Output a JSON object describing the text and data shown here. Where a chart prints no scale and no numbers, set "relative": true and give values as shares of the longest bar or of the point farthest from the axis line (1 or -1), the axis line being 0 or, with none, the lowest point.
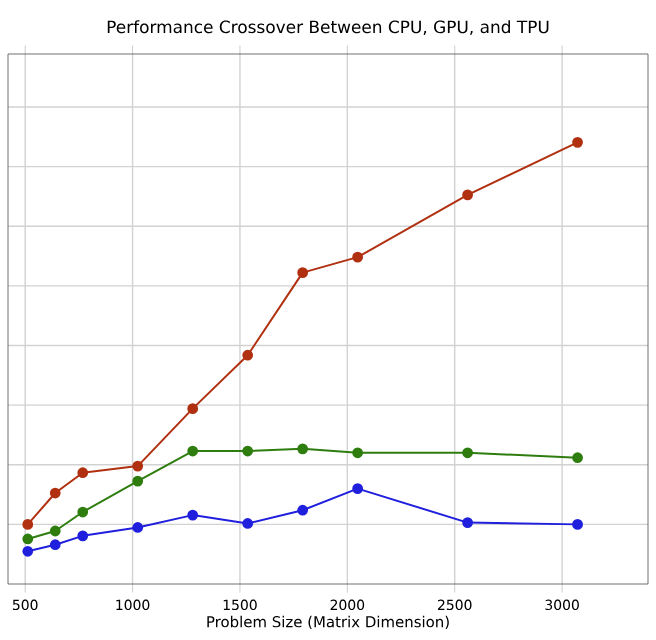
{
  "chart_data": {
    "type": "line",
    "title": "Performance Crossover Between CPU, GPU, and TPU",
    "xlabel": "Problem Size (Matrix Dimension)",
    "x": [
      512,
      640,
      768,
      1024,
      1280,
      1536,
      1792,
      2048,
      2560,
      3072
    ],
    "xlim": [
      420,
      3400
    ],
    "xticks": [
      500,
      1000,
      1500,
      2000,
      2500,
      3000
    ],
    "relative": true,
    "grid": true,
    "marker": "circle",
    "line_style": "solid",
    "series": [
      {
        "color": "#b03010",
        "values": [
          0.135,
          0.206,
          0.252,
          0.267,
          0.397,
          0.518,
          0.705,
          0.74,
          0.881,
          1.0
        ]
      },
      {
        "color": "#2e7d0e",
        "values": [
          0.102,
          0.12,
          0.163,
          0.233,
          0.301,
          0.301,
          0.306,
          0.297,
          0.297,
          0.286
        ]
      },
      {
        "color": "#1f1fdd",
        "values": [
          0.074,
          0.089,
          0.109,
          0.128,
          0.156,
          0.137,
          0.167,
          0.216,
          0.139,
          0.135
        ]
      }
    ]
  }
}
